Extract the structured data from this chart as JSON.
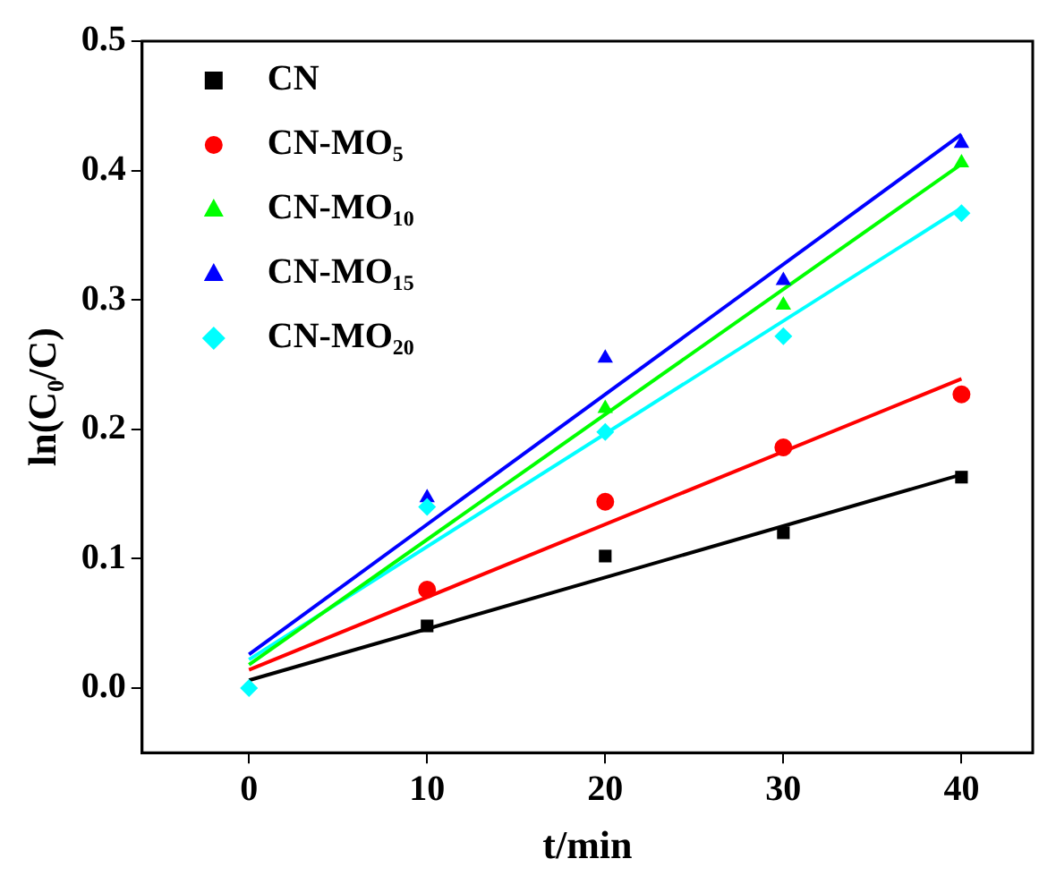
{
  "chart_data": {
    "type": "scatter",
    "xlabel": "t/min",
    "ylabel": "ln(C₀/C)",
    "xlim": [
      -6,
      44
    ],
    "xticks": [
      0,
      10,
      20,
      30,
      40
    ],
    "ylim": [
      -0.05,
      0.5
    ],
    "yticks": [
      {
        "value": 0,
        "label": "0.0"
      },
      0.1,
      0.2,
      0.3,
      0.4,
      0.5
    ],
    "grid": false,
    "legend": "top left",
    "series": [
      {
        "name": "CN",
        "color": "#000000",
        "marker": "square",
        "x": [
          10,
          20,
          30,
          40
        ],
        "values": [
          0.048,
          0.102,
          0.12,
          0.163
        ]
      },
      {
        "name": "CN-MO₅",
        "color": "#ff0000",
        "marker": "circle",
        "x": [
          10,
          20,
          30,
          40
        ],
        "values": [
          0.076,
          0.144,
          0.186,
          0.227
        ]
      },
      {
        "name": "CN-MO₁₀",
        "color": "#00ff00",
        "marker": "triangle",
        "x": [
          20,
          30,
          40
        ],
        "values": [
          0.216,
          0.296,
          0.406
        ]
      },
      {
        "name": "CN-MO₁₅",
        "color": "#0000ff",
        "marker": "triangle",
        "x": [
          10,
          20,
          30,
          40
        ],
        "values": [
          0.147,
          0.255,
          0.315,
          0.421
        ]
      },
      {
        "name": "CN-MO₂₀",
        "color": "#00ffff",
        "marker": "diamond",
        "x": [
          0,
          10,
          20,
          30,
          40
        ],
        "values": [
          0,
          0.14,
          0.198,
          0.272,
          0.367
        ]
      },
      {
        "type": "line",
        "color": "#000000",
        "marker": "none",
        "x": [
          0,
          40
        ],
        "values": [
          0.006,
          0.165
        ]
      },
      {
        "type": "line",
        "color": "#ff0000",
        "marker": "none",
        "x": [
          0,
          40
        ],
        "values": [
          0.014,
          0.239
        ]
      },
      {
        "type": "line",
        "color": "#00ff00",
        "marker": "none",
        "x": [
          0,
          40
        ],
        "values": [
          0.018,
          0.405
        ]
      },
      {
        "type": "line",
        "color": "#0000ff",
        "marker": "none",
        "x": [
          0,
          40
        ],
        "values": [
          0.026,
          0.428
        ]
      },
      {
        "type": "line",
        "color": "#00ffff",
        "marker": "none",
        "x": [
          0,
          40
        ],
        "values": [
          0.022,
          0.371
        ]
      }
    ]
  }
}
